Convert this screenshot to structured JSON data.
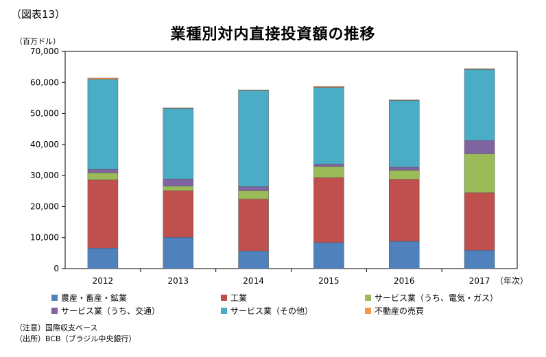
{
  "figure_label": "（図表13）",
  "footnotes": [
    "（注意）国際収支ベース",
    "（出所）BCB（ブラジル中央銀行）"
  ],
  "chart_data": {
    "type": "bar",
    "stacked": true,
    "title": "業種別対内直接投資額の推移",
    "ylabel": "（百万ドル）",
    "xlabel": "（年次）",
    "ylim": [
      0,
      70000
    ],
    "yticks": [
      0,
      10000,
      20000,
      30000,
      40000,
      50000,
      60000,
      70000
    ],
    "ytick_labels": [
      "0",
      "10,000",
      "20,000",
      "30,000",
      "40,000",
      "50,000",
      "60,000",
      "70,000"
    ],
    "grid": false,
    "legend_position": "bottom",
    "categories": [
      "2012",
      "2013",
      "2014",
      "2015",
      "2016",
      "2017"
    ],
    "series": [
      {
        "name": "農産・畜産・鉱業",
        "color": "#4f81bd",
        "values": [
          6600,
          10100,
          5700,
          8400,
          8800,
          5900
        ]
      },
      {
        "name": "工業",
        "color": "#c0504d",
        "values": [
          22000,
          15000,
          16700,
          20900,
          20000,
          18600
        ]
      },
      {
        "name": "サービス業（うち、電気・ガス）",
        "color": "#9bbb59",
        "values": [
          2300,
          1500,
          2700,
          3600,
          2900,
          12500
        ]
      },
      {
        "name": "サービス業（うち、交通）",
        "color": "#8064a2",
        "values": [
          1100,
          2300,
          1300,
          800,
          1000,
          4300
        ]
      },
      {
        "name": "サービス業（その他）",
        "color": "#4bacc6",
        "values": [
          29000,
          22700,
          31000,
          24700,
          21500,
          22900
        ]
      },
      {
        "name": "不動産の売買",
        "color": "#f79646",
        "values": [
          400,
          200,
          200,
          300,
          150,
          200
        ]
      }
    ]
  }
}
